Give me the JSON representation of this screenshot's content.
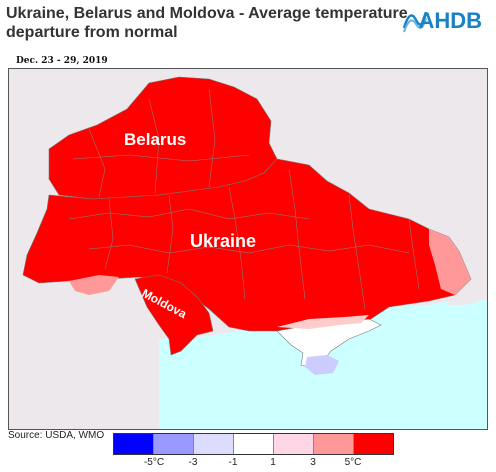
{
  "header": {
    "title_line1": "Ukraine, Belarus and Moldova - Average temperature",
    "title_line2": "departure from normal",
    "logo_text": "AHDB"
  },
  "map": {
    "date_range": "Dec. 23 - 29, 2019",
    "countries": [
      {
        "name": "Belarus"
      },
      {
        "name": "Ukraine"
      },
      {
        "name": "Moldova"
      }
    ],
    "colors": {
      "land_other": "#ece8ec",
      "sea": "#ccffff",
      "warm_strong": "#ff0000",
      "warm_moderate": "#ff9999",
      "warm_light": "#ffcccc",
      "cool_light": "#ccccff",
      "borders": "#777777"
    }
  },
  "footer": {
    "source": "Source: USDA, WMO"
  },
  "legend": {
    "swatch_colors": [
      "#0000ff",
      "#9999ff",
      "#dcdcff",
      "#ffffff",
      "#ffd6e6",
      "#ff9999",
      "#ff0000"
    ],
    "tick_labels": [
      "-5°C",
      "-3",
      "-1",
      "1",
      "3",
      "5°C"
    ]
  }
}
